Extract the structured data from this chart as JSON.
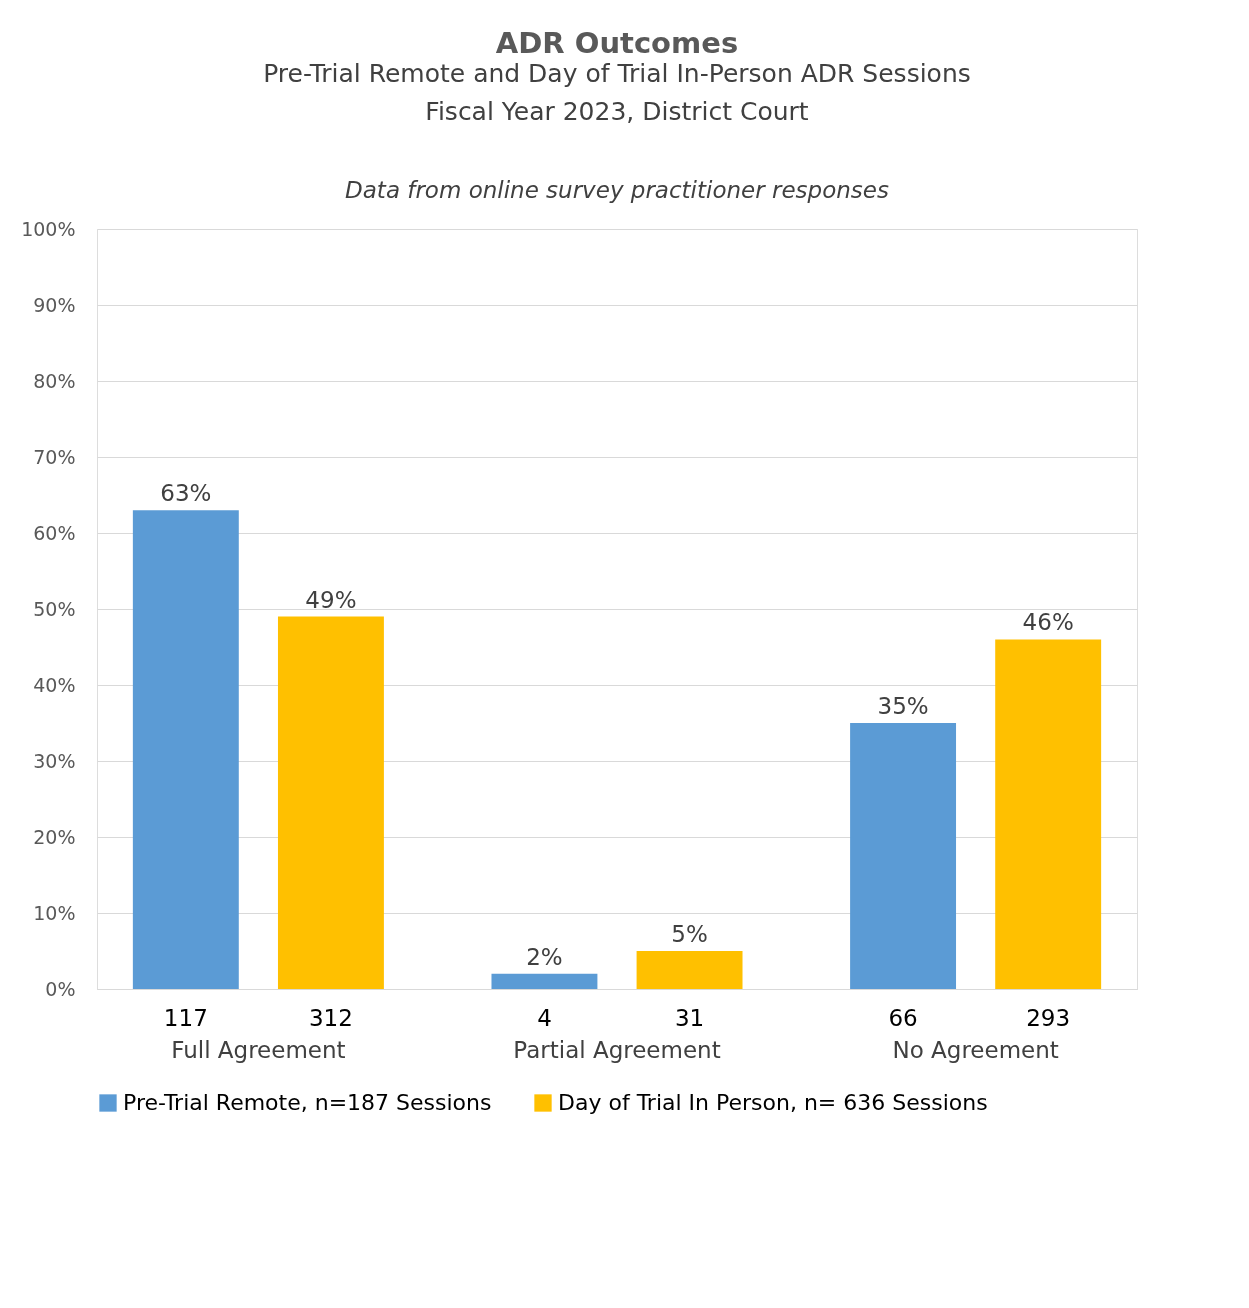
{
  "chart_data": {
    "type": "bar",
    "title": "ADR Outcomes",
    "subtitle": "Pre-Trial Remote and Day of Trial In-Person ADR Sessions\nFiscal Year 2023, District Court",
    "categories": [
      "Full Agreement",
      "Partial Agreement",
      "No Agreement"
    ],
    "series": [
      {
        "name": "Pre-Trial Remote, n=187 Sessions",
        "color": "#5b9bd5",
        "values": [
          63,
          2,
          35
        ],
        "value_labels": [
          "63%",
          "2%",
          "35%"
        ]
      },
      {
        "name": "Day of Trial In Person, n= 636 Sessions",
        "color": "#ffc000",
        "values": [
          49,
          5,
          46
        ],
        "value_labels": [
          "49%",
          "5%",
          "46%"
        ]
      }
    ],
    "ylim": [
      0,
      100
    ],
    "yticks": [
      {
        "value": 0,
        "label": "0%"
      },
      {
        "value": 10,
        "label": "10%"
      },
      {
        "value": 20,
        "label": "20%"
      },
      {
        "value": 30,
        "label": "30%"
      },
      {
        "value": 40,
        "label": "40%"
      },
      {
        "value": 50,
        "label": "50%"
      },
      {
        "value": 60,
        "label": "60%"
      },
      {
        "value": 70,
        "label": "70%"
      },
      {
        "value": 80,
        "label": "80%"
      },
      {
        "value": 90,
        "label": "90%"
      },
      {
        "value": 100,
        "label": "100%"
      }
    ],
    "grid": "y",
    "legend": "bottom",
    "annotations": [
      "Data from online survey practitioner responses",
      "117",
      "312",
      "4",
      "31",
      "66",
      "293"
    ]
  }
}
